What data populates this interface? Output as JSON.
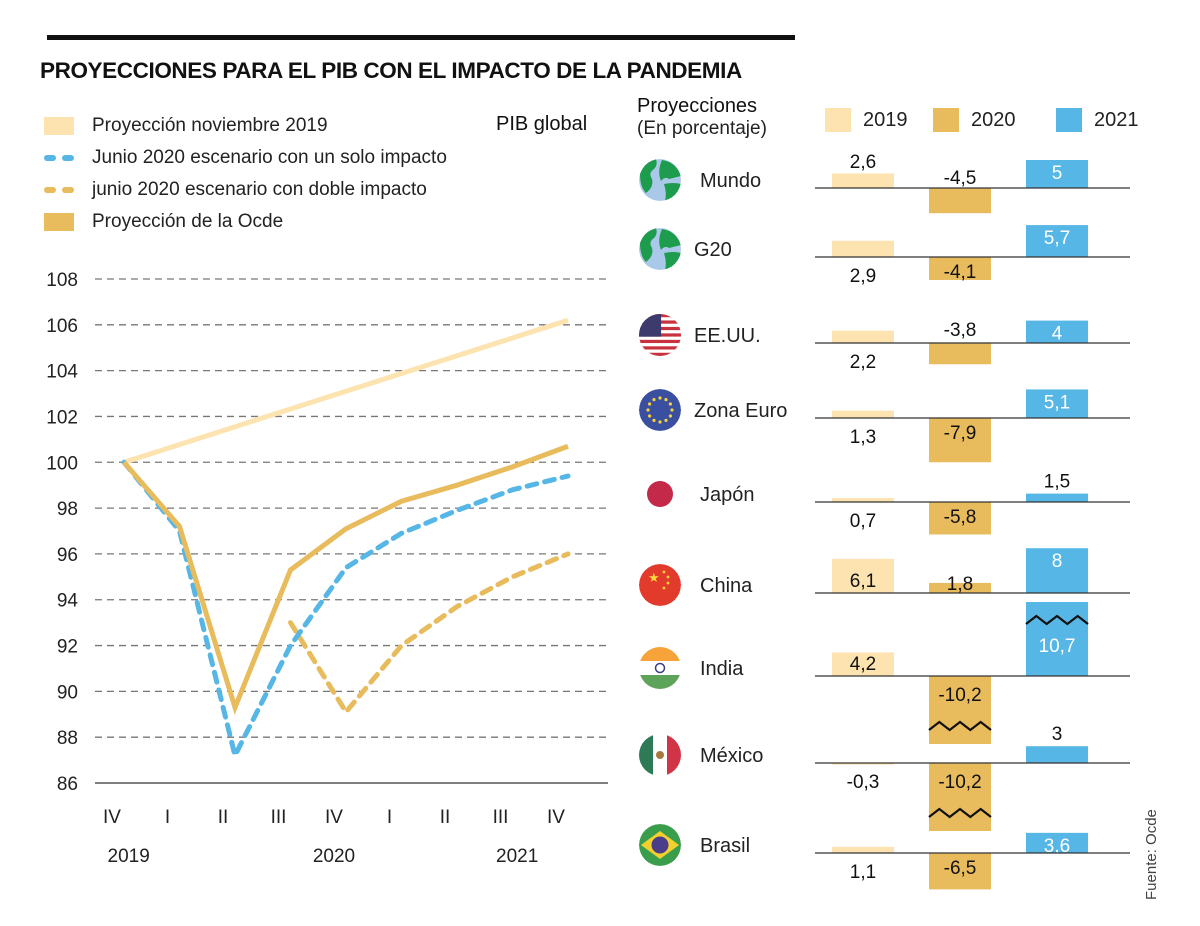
{
  "title": "PROYECCIONES PARA EL PIB CON EL IMPACTO DE LA PANDEMIA",
  "source": "Fuente: Ocde",
  "colors": {
    "nov2019": "#fde3b0",
    "ocde": "#e8bb5d",
    "blue": "#56b6e6",
    "y2019": "#fde3b0",
    "y2020": "#e8bb5d",
    "y2021": "#56b6e6",
    "grid": "#777777",
    "text": "#1a1a1a"
  },
  "legend": [
    {
      "label": "Proyección noviembre 2019",
      "style": "swatch",
      "color": "#fde3b0"
    },
    {
      "label": "Junio 2020 escenario con un solo impacto",
      "style": "dash",
      "color": "#56b6e6"
    },
    {
      "label": "junio 2020 escenario con doble impacto",
      "style": "dash",
      "color": "#e8bb5d"
    },
    {
      "label": "Proyección de la Ocde",
      "style": "swatch",
      "color": "#e8bb5d"
    }
  ],
  "right_panel": {
    "title": "Proyecciones",
    "subtitle": "(En porcentaje)",
    "year_legend": [
      "2019",
      "2020",
      "2021"
    ]
  },
  "chart_data": [
    {
      "type": "line",
      "title": "PIB global",
      "xlabel": "",
      "ylabel": "",
      "ylim": [
        86,
        108
      ],
      "yticks": [
        108,
        106,
        104,
        102,
        100,
        98,
        96,
        94,
        92,
        90,
        88,
        86
      ],
      "ytick_labels": [
        "108",
        "106",
        "104",
        "102",
        "100",
        "98",
        "96",
        "94",
        "92",
        "90",
        "88",
        "86"
      ],
      "grid": true,
      "x": [
        "IV-2019",
        "I-2020",
        "II-2020",
        "III-2020",
        "IV-2020",
        "I-2021",
        "II-2021",
        "III-2021",
        "IV-2021"
      ],
      "xtick_labels": [
        "IV",
        "I",
        "II",
        "III",
        "IV",
        "I",
        "II",
        "III",
        "IV"
      ],
      "year_labels": [
        {
          "label": "2019",
          "at_index": 0.3
        },
        {
          "label": "2020",
          "at_index": 4
        },
        {
          "label": "2021",
          "at_index": 7.3
        }
      ],
      "series": [
        {
          "name": "Proyección noviembre 2019",
          "style": "solid",
          "color": "#fde3b0",
          "values": [
            100,
            null,
            null,
            null,
            null,
            null,
            null,
            null,
            106.2
          ]
        },
        {
          "name": "Proyección de la Ocde",
          "style": "solid",
          "color": "#e8bb5d",
          "values": [
            100,
            97.2,
            89.3,
            95.3,
            97.1,
            98.3,
            99.0,
            99.8,
            100.7
          ]
        },
        {
          "name": "Junio 2020 escenario con un solo impacto",
          "style": "dashed",
          "color": "#56b6e6",
          "values": [
            100,
            97.0,
            87.2,
            92.0,
            95.4,
            96.9,
            97.9,
            98.8,
            99.4
          ]
        },
        {
          "name": "junio 2020 escenario con doble impacto",
          "style": "dashed",
          "color": "#e8bb5d",
          "values": [
            null,
            null,
            null,
            93.0,
            89.1,
            92.0,
            93.7,
            95.0,
            96.0
          ]
        }
      ]
    },
    {
      "type": "bar",
      "title": "Proyecciones (En porcentaje)",
      "categories": [
        "Mundo",
        "G20",
        "EE.UU.",
        "Zona Euro",
        "Japón",
        "China",
        "India",
        "México",
        "Brasil"
      ],
      "flags": [
        "globe-icon",
        "globe-icon",
        "usa-flag-icon",
        "eu-flag-icon",
        "japan-flag-icon",
        "china-flag-icon",
        "india-flag-icon",
        "mexico-flag-icon",
        "brazil-flag-icon"
      ],
      "series": [
        {
          "name": "2019",
          "color": "#fde3b0",
          "values": [
            2.6,
            2.9,
            2.2,
            1.3,
            0.7,
            6.1,
            4.2,
            -0.3,
            1.1
          ],
          "labels": [
            "2,6",
            "2,9",
            "2,2",
            "1,3",
            "0,7",
            "6,1",
            "4,2",
            "-0,3",
            "1,1"
          ]
        },
        {
          "name": "2020",
          "color": "#e8bb5d",
          "values": [
            -4.5,
            -4.1,
            -3.8,
            -7.9,
            -5.8,
            1.8,
            -10.2,
            -10.2,
            -6.5
          ],
          "labels": [
            "-4,5",
            "-4,1",
            "-3,8",
            "-7,9",
            "-5,8",
            "1,8",
            "-10,2",
            "-10,2",
            "-6,5"
          ]
        },
        {
          "name": "2021",
          "color": "#56b6e6",
          "values": [
            5,
            5.7,
            4,
            5.1,
            1.5,
            8,
            10.7,
            3,
            3.6
          ],
          "labels": [
            "5",
            "5,7",
            "4",
            "5,1",
            "1,5",
            "8",
            "10,7",
            "3",
            "3,6"
          ]
        }
      ],
      "broken_bars": [
        {
          "category": "India",
          "series": "2021"
        },
        {
          "category": "India",
          "series": "2020"
        },
        {
          "category": "México",
          "series": "2020"
        }
      ]
    }
  ]
}
